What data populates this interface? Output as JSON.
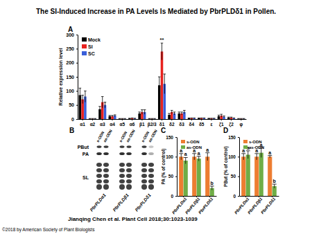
{
  "title": "The SI-Induced Increase in PA Levels Is Mediated by PbrPLDδ1 in Pollen.",
  "chart_data": [
    {
      "panel": "A",
      "type": "bar",
      "y_label": "Relative expression level",
      "categories": [
        "α1",
        "α2",
        "α3",
        "α4",
        "α5",
        "α6",
        "β1",
        "β2/3",
        "δ1",
        "δ2",
        "δ3",
        "δ4",
        "δ5",
        "ε",
        "ζ1",
        "ζ2",
        "φ"
      ],
      "series": [
        {
          "name": "Mock",
          "color": "#000000",
          "values": [
            85,
            1,
            35,
            10,
            1,
            2,
            20,
            1,
            120,
            15,
            20,
            3,
            3,
            2,
            10,
            5,
            1
          ],
          "errors": [
            25,
            1,
            10,
            3,
            1,
            1,
            5,
            1,
            30,
            5,
            5,
            1,
            1,
            1,
            4,
            2,
            1
          ]
        },
        {
          "name": "SI",
          "color": "#e8221e",
          "values": [
            70,
            1,
            60,
            10,
            1,
            3,
            25,
            1,
            240,
            25,
            20,
            3,
            3,
            2,
            12,
            5,
            1
          ],
          "errors": [
            15,
            1,
            20,
            3,
            1,
            1,
            8,
            1,
            30,
            6,
            5,
            1,
            1,
            1,
            5,
            2,
            1
          ],
          "annotations": [
            null,
            null,
            null,
            null,
            null,
            null,
            null,
            null,
            "**",
            null,
            null,
            null,
            null,
            null,
            null,
            null,
            null
          ]
        },
        {
          "name": "SC",
          "color": "#3a5fd9",
          "values": [
            80,
            1,
            50,
            12,
            1,
            2,
            25,
            1,
            125,
            20,
            25,
            3,
            3,
            2,
            8,
            3,
            1
          ],
          "errors": [
            20,
            1,
            10,
            3,
            1,
            1,
            8,
            1,
            35,
            5,
            6,
            1,
            1,
            1,
            3,
            1,
            1
          ]
        }
      ],
      "ylim": [
        0,
        300
      ],
      "yticks": [
        0,
        50,
        100,
        150,
        200,
        250,
        300
      ],
      "legend": "upper left"
    },
    {
      "panel": "C",
      "type": "bar",
      "y_label": "PA (% of control)",
      "categories": [
        "PbrPLDα1",
        "PbrPLDβ1",
        "PbrPLDδ1"
      ],
      "series": [
        {
          "name": "s-ODN",
          "color": "#ed7d31",
          "values": [
            100,
            100,
            100
          ],
          "errors": [
            8,
            8,
            10
          ],
          "annotations": [
            "a",
            "a",
            "a"
          ]
        },
        {
          "name": "as-ODN",
          "color": "#70ad47",
          "values": [
            90,
            95,
            20
          ],
          "errors": [
            8,
            6,
            5
          ],
          "annotations": [
            "a",
            "a",
            "b"
          ]
        }
      ],
      "ylim": [
        0,
        150
      ],
      "yticks": [
        0,
        50,
        100,
        150
      ],
      "legend": "upper left"
    },
    {
      "panel": "D",
      "type": "bar",
      "y_label": "PBut (% of control)",
      "categories": [
        "PbrPLDα1",
        "PbrPLDβ1",
        "PbrPLDδ1"
      ],
      "series": [
        {
          "name": "s-ODN",
          "color": "#ed7d31",
          "values": [
            100,
            100,
            100
          ],
          "errors": [
            8,
            8,
            3
          ],
          "annotations": [
            "a",
            "a",
            "a"
          ]
        },
        {
          "name": "as-ODN",
          "color": "#70ad47",
          "values": [
            105,
            110,
            25
          ],
          "errors": [
            10,
            12,
            5
          ],
          "annotations": [
            "a",
            "a",
            "b"
          ]
        }
      ],
      "ylim": [
        0,
        150
      ],
      "yticks": [
        0,
        50,
        100,
        150
      ],
      "legend": "upper left"
    }
  ],
  "panel_b": {
    "panel": "B",
    "lanes": [
      "PBut",
      "PA",
      "SL"
    ],
    "treatments": [
      "s-ODN",
      "as-ODN"
    ],
    "samples": [
      "PbrPLDα1",
      "PbrPLDβ1",
      "PbrPLDδ1"
    ]
  },
  "footer": {
    "citation": "Jianqing Chen et al. Plant Cell 2018;30:1023-1039",
    "copyright": "©2018 by American Society of Plant Biologists"
  }
}
